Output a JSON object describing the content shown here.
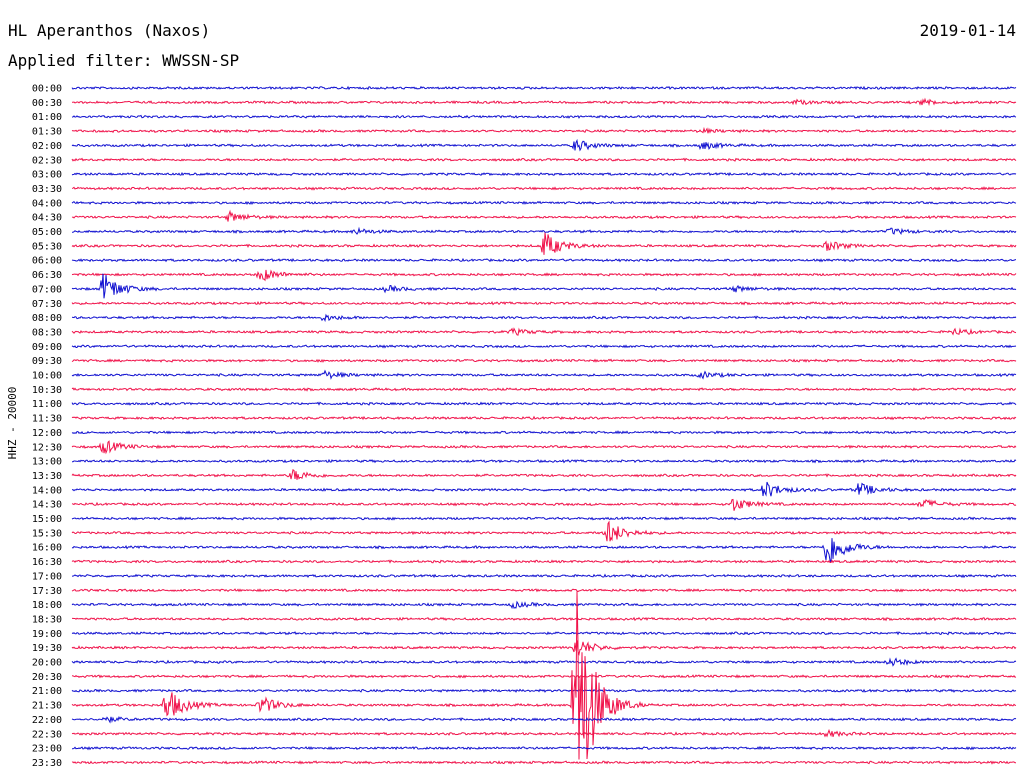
{
  "header": {
    "station": "HL Aperanthos (Naxos)",
    "date": "2019-01-14",
    "filter": "Applied filter: WWSSN-SP"
  },
  "colors": {
    "even_row": "#1010d0",
    "odd_row": "#f0124a",
    "text": "#000000"
  },
  "chart_data": {
    "type": "line",
    "ylabel": "HHZ - 20000",
    "xlabel": "",
    "grid": false,
    "rows": [
      "00:00",
      "00:30",
      "01:00",
      "01:30",
      "02:00",
      "02:30",
      "03:00",
      "03:30",
      "04:00",
      "04:30",
      "05:00",
      "05:30",
      "06:00",
      "06:30",
      "07:00",
      "07:30",
      "08:00",
      "08:30",
      "09:00",
      "09:30",
      "10:00",
      "10:30",
      "11:00",
      "11:30",
      "12:00",
      "12:30",
      "13:00",
      "13:30",
      "14:00",
      "14:30",
      "15:00",
      "15:30",
      "16:00",
      "16:30",
      "17:00",
      "17:30",
      "18:00",
      "18:30",
      "19:00",
      "19:30",
      "20:00",
      "20:30",
      "21:00",
      "21:30",
      "22:00",
      "22:30",
      "23:00",
      "23:30"
    ],
    "events": [
      {
        "row": "00:30",
        "minute": 23,
        "amplitude": 2
      },
      {
        "row": "00:30",
        "minute": 27,
        "amplitude": 3
      },
      {
        "row": "01:30",
        "minute": 20,
        "amplitude": 2
      },
      {
        "row": "02:00",
        "minute": 16,
        "amplitude": 6
      },
      {
        "row": "02:00",
        "minute": 20,
        "amplitude": 4
      },
      {
        "row": "04:30",
        "minute": 5,
        "amplitude": 5
      },
      {
        "row": "05:00",
        "minute": 9,
        "amplitude": 3
      },
      {
        "row": "05:00",
        "minute": 26,
        "amplitude": 3
      },
      {
        "row": "05:30",
        "minute": 15,
        "amplitude": 14
      },
      {
        "row": "05:30",
        "minute": 24,
        "amplitude": 5
      },
      {
        "row": "06:30",
        "minute": 6,
        "amplitude": 7
      },
      {
        "row": "07:00",
        "minute": 1,
        "amplitude": 16
      },
      {
        "row": "07:00",
        "minute": 10,
        "amplitude": 3
      },
      {
        "row": "07:00",
        "minute": 21,
        "amplitude": 3
      },
      {
        "row": "08:00",
        "minute": 8,
        "amplitude": 3
      },
      {
        "row": "08:30",
        "minute": 14,
        "amplitude": 3
      },
      {
        "row": "08:30",
        "minute": 28,
        "amplitude": 3
      },
      {
        "row": "10:00",
        "minute": 8,
        "amplitude": 4
      },
      {
        "row": "10:00",
        "minute": 20,
        "amplitude": 3
      },
      {
        "row": "12:30",
        "minute": 1,
        "amplitude": 7
      },
      {
        "row": "13:30",
        "minute": 7,
        "amplitude": 6
      },
      {
        "row": "14:00",
        "minute": 22,
        "amplitude": 9
      },
      {
        "row": "14:00",
        "minute": 25,
        "amplitude": 7
      },
      {
        "row": "14:30",
        "minute": 21,
        "amplitude": 7
      },
      {
        "row": "14:30",
        "minute": 27,
        "amplitude": 5
      },
      {
        "row": "15:30",
        "minute": 17,
        "amplitude": 13
      },
      {
        "row": "16:00",
        "minute": 24,
        "amplitude": 22
      },
      {
        "row": "18:00",
        "minute": 14,
        "amplitude": 3
      },
      {
        "row": "19:30",
        "minute": 16,
        "amplitude": 10
      },
      {
        "row": "20:00",
        "minute": 26,
        "amplitude": 4
      },
      {
        "row": "21:30",
        "minute": 3,
        "amplitude": 18
      },
      {
        "row": "21:30",
        "minute": 6,
        "amplitude": 9
      },
      {
        "row": "21:30",
        "minute": 16,
        "amplitude": 140
      },
      {
        "row": "22:00",
        "minute": 1,
        "amplitude": 3
      },
      {
        "row": "22:30",
        "minute": 24,
        "amplitude": 3
      }
    ]
  }
}
